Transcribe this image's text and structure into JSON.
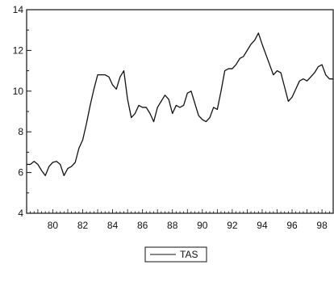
{
  "chart_data": {
    "type": "line",
    "x_ticks": [
      "80",
      "82",
      "84",
      "86",
      "88",
      "90",
      "92",
      "94",
      "96",
      "98"
    ],
    "y_ticks": [
      "4",
      "6",
      "8",
      "10",
      "12",
      "14"
    ],
    "ylim": [
      4,
      14
    ],
    "xlim": [
      1978.25,
      1998.75
    ],
    "grid": false,
    "legend_position": "bottom-center",
    "series": [
      {
        "name": "TAS",
        "color": "#111111",
        "x": [
          1978.25,
          1978.5,
          1978.75,
          1979,
          1979.25,
          1979.5,
          1979.75,
          1980,
          1980.25,
          1980.5,
          1980.75,
          1981,
          1981.25,
          1981.5,
          1981.75,
          1982,
          1982.25,
          1982.5,
          1982.75,
          1983,
          1983.25,
          1983.5,
          1983.75,
          1984,
          1984.25,
          1984.5,
          1984.75,
          1985,
          1985.25,
          1985.5,
          1985.75,
          1986,
          1986.25,
          1986.5,
          1986.75,
          1987,
          1987.25,
          1987.5,
          1987.75,
          1988,
          1988.25,
          1988.5,
          1988.75,
          1989,
          1989.25,
          1989.5,
          1989.75,
          1990,
          1990.25,
          1990.5,
          1990.75,
          1991,
          1991.25,
          1991.5,
          1991.75,
          1992,
          1992.25,
          1992.5,
          1992.75,
          1993,
          1993.25,
          1993.5,
          1993.75,
          1994,
          1994.25,
          1994.5,
          1994.75,
          1995,
          1995.25,
          1995.5,
          1995.75,
          1996,
          1996.25,
          1996.5,
          1996.75,
          1997,
          1997.25,
          1997.5,
          1997.75,
          1998,
          1998.25,
          1998.5,
          1998.75
        ],
        "values": [
          6.4,
          6.4,
          6.55,
          6.4,
          6.1,
          5.85,
          6.3,
          6.5,
          6.55,
          6.4,
          5.85,
          6.2,
          6.3,
          6.5,
          7.2,
          7.6,
          8.4,
          9.3,
          10.1,
          10.8,
          10.8,
          10.8,
          10.7,
          10.3,
          10.1,
          10.7,
          11.0,
          9.6,
          8.7,
          8.9,
          9.3,
          9.2,
          9.2,
          8.9,
          8.5,
          9.2,
          9.5,
          9.8,
          9.6,
          8.9,
          9.3,
          9.2,
          9.3,
          9.9,
          10.0,
          9.4,
          8.8,
          8.6,
          8.5,
          8.7,
          9.2,
          9.1,
          10.0,
          11.0,
          11.1,
          11.1,
          11.3,
          11.6,
          11.7,
          12.0,
          12.3,
          12.5,
          12.85,
          12.3,
          11.8,
          11.3,
          10.8,
          11.0,
          10.9,
          10.2,
          9.5,
          9.7,
          10.1,
          10.5,
          10.6,
          10.5,
          10.7,
          10.9,
          11.2,
          11.3,
          10.8,
          10.6,
          10.6
        ]
      }
    ]
  }
}
